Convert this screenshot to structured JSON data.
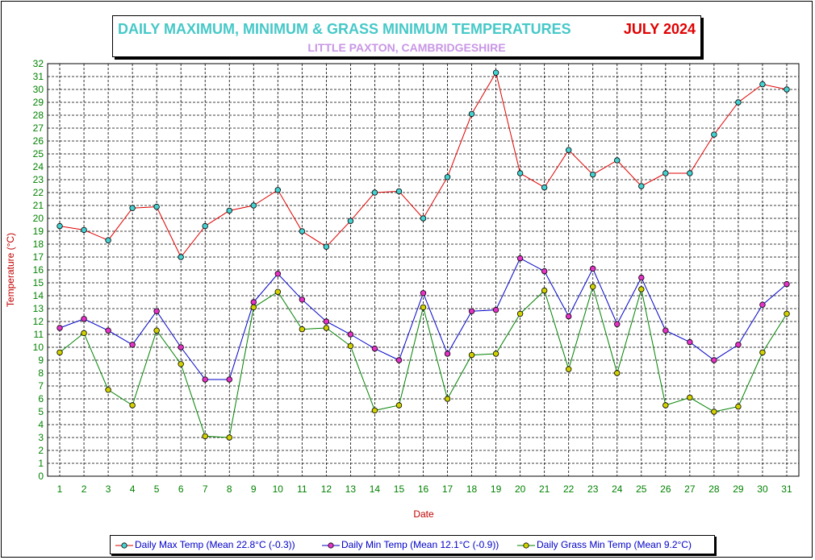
{
  "chart_data": {
    "type": "line",
    "title": "DAILY MAXIMUM, MINIMUM & GRASS MINIMUM TEMPERATURES",
    "title_month": "JULY 2024",
    "subtitle": "LITTLE PAXTON, CAMBRIDGESHIRE",
    "xlabel": "Date",
    "ylabel": "Temperature (°C)",
    "ylim": [
      0,
      32
    ],
    "grid": true,
    "legend_position": "bottom",
    "x": [
      1,
      2,
      3,
      4,
      5,
      6,
      7,
      8,
      9,
      10,
      11,
      12,
      13,
      14,
      15,
      16,
      17,
      18,
      19,
      20,
      21,
      22,
      23,
      24,
      25,
      26,
      27,
      28,
      29,
      30,
      31
    ],
    "series": [
      {
        "name": "Daily Max Temp (Mean 22.8°C (-0.3))",
        "line_color": "#e00000",
        "marker_color": "#46d2d2",
        "values": [
          19.4,
          19.1,
          18.3,
          20.8,
          20.9,
          17.0,
          19.4,
          20.6,
          21.0,
          22.2,
          19.0,
          17.8,
          19.8,
          22.0,
          22.1,
          20.0,
          23.2,
          28.1,
          31.3,
          23.5,
          22.4,
          25.3,
          23.4,
          24.5,
          22.5,
          23.5,
          23.5,
          26.5,
          29.0,
          30.4,
          30.0
        ]
      },
      {
        "name": "Daily Min Temp (Mean 12.1°C (-0.9))",
        "line_color": "#0000c8",
        "marker_color": "#e632c8",
        "values": [
          11.5,
          12.2,
          11.3,
          10.2,
          12.8,
          10.0,
          7.5,
          7.5,
          13.5,
          15.7,
          13.7,
          12.0,
          11.0,
          9.9,
          9.0,
          14.2,
          9.5,
          12.8,
          12.9,
          16.9,
          15.9,
          12.4,
          16.1,
          11.8,
          15.4,
          11.3,
          10.4,
          9.0,
          10.2,
          13.3,
          14.9
        ]
      },
      {
        "name": "Daily Grass Min Temp (Mean 9.2°C)",
        "line_color": "#008200",
        "marker_color": "#d2d200",
        "values": [
          9.6,
          11.1,
          6.7,
          5.5,
          11.3,
          8.7,
          3.1,
          3.0,
          13.1,
          14.3,
          11.4,
          11.5,
          10.1,
          5.1,
          5.5,
          13.1,
          6.0,
          9.4,
          9.5,
          12.6,
          14.4,
          8.3,
          14.7,
          8.0,
          14.5,
          5.5,
          6.1,
          5.0,
          5.4,
          9.6,
          12.6
        ]
      }
    ]
  }
}
